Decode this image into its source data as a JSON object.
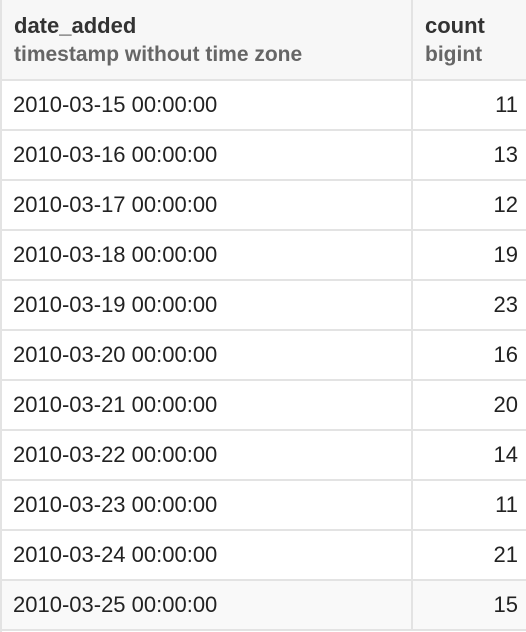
{
  "columns": [
    {
      "name": "date_added",
      "type": "timestamp without time zone"
    },
    {
      "name": "count",
      "type": "bigint"
    }
  ],
  "rows": [
    {
      "date_added": "2010-03-15 00:00:00",
      "count": "11"
    },
    {
      "date_added": "2010-03-16 00:00:00",
      "count": "13"
    },
    {
      "date_added": "2010-03-17 00:00:00",
      "count": "12"
    },
    {
      "date_added": "2010-03-18 00:00:00",
      "count": "19"
    },
    {
      "date_added": "2010-03-19 00:00:00",
      "count": "23"
    },
    {
      "date_added": "2010-03-20 00:00:00",
      "count": "16"
    },
    {
      "date_added": "2010-03-21 00:00:00",
      "count": "20"
    },
    {
      "date_added": "2010-03-22 00:00:00",
      "count": "14"
    },
    {
      "date_added": "2010-03-23 00:00:00",
      "count": "11"
    },
    {
      "date_added": "2010-03-24 00:00:00",
      "count": "21"
    },
    {
      "date_added": "2010-03-25 00:00:00",
      "count": "15"
    }
  ],
  "colors": {
    "header_bg": "#f7f7f7",
    "grid_line": "#e3e3e3",
    "text": "#222222",
    "type_text": "#666666"
  }
}
